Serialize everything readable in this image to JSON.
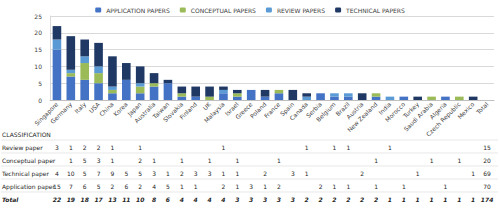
{
  "chart_data": {
    "type": "bar",
    "stacked": true,
    "legend": "top",
    "grid": true,
    "categories": [
      "Singapore",
      "Germany",
      "Italy",
      "USA",
      "China",
      "Korea",
      "Japan",
      "Australia",
      "Taiwan",
      "Slovakia",
      "Finland",
      "UK",
      "Malaysia",
      "Israel",
      "Greece",
      "Poland",
      "France",
      "Spain",
      "Canada",
      "Serbia",
      "Belgium",
      "Brazil",
      "Austria",
      "New Zealand",
      "India",
      "Morocco",
      "Turkey",
      "Saudi Arabia",
      "Algeria",
      "Czech Republic",
      "Mexico",
      "Total"
    ],
    "ylim": [
      0,
      25
    ],
    "yticks": [
      0,
      5,
      10,
      15,
      20,
      25
    ],
    "series": [
      {
        "name": "APPLICATION PAPERS",
        "color": "#4472c4",
        "values": [
          15,
          7,
          6,
          5,
          2,
          6,
          2,
          4,
          5,
          1,
          1,
          null,
          2,
          1,
          3,
          1,
          2,
          null,
          null,
          2,
          1,
          1,
          null,
          1,
          null,
          1,
          null,
          null,
          1,
          null,
          null,
          null
        ]
      },
      {
        "name": "CONCEPTUAL PAPERS",
        "color": "#9bbb59",
        "values": [
          null,
          1,
          5,
          3,
          1,
          null,
          2,
          1,
          null,
          1,
          null,
          1,
          null,
          1,
          null,
          null,
          1,
          null,
          null,
          null,
          null,
          null,
          null,
          1,
          null,
          null,
          null,
          1,
          null,
          1,
          null,
          null
        ]
      },
      {
        "name": "REVIEW PAPERS",
        "color": "#5b9bd5",
        "values": [
          3,
          1,
          2,
          2,
          1,
          null,
          1,
          null,
          null,
          null,
          null,
          null,
          1,
          null,
          null,
          null,
          null,
          null,
          1,
          null,
          1,
          1,
          null,
          null,
          1,
          null,
          null,
          null,
          null,
          null,
          null,
          null
        ]
      },
      {
        "name": "TECHNICAL PAPERS",
        "color": "#1f3864",
        "values": [
          4,
          10,
          5,
          7,
          9,
          5,
          5,
          3,
          1,
          2,
          3,
          3,
          1,
          1,
          null,
          2,
          null,
          3,
          1,
          null,
          null,
          null,
          2,
          null,
          null,
          null,
          1,
          null,
          null,
          null,
          1,
          null
        ]
      }
    ],
    "table": {
      "header": "CLASSIFICATION",
      "rows": [
        {
          "label": "Review paper",
          "series": "REVIEW PAPERS",
          "total": 15
        },
        {
          "label": "Conceptual paper",
          "series": "CONCEPTUAL PAPERS",
          "total": 20
        },
        {
          "label": "Technical paper",
          "series": "TECHNICAL PAPERS",
          "total": 69
        },
        {
          "label": "Application paper",
          "series": "APPLICATION PAPERS",
          "total": 70
        }
      ],
      "total_row": {
        "label": "Total",
        "values": [
          22,
          19,
          18,
          17,
          13,
          11,
          10,
          8,
          6,
          4,
          4,
          4,
          4,
          3,
          3,
          3,
          3,
          3,
          2,
          2,
          2,
          2,
          2,
          2,
          1,
          1,
          1,
          1,
          1,
          1,
          1,
          174
        ]
      }
    }
  }
}
